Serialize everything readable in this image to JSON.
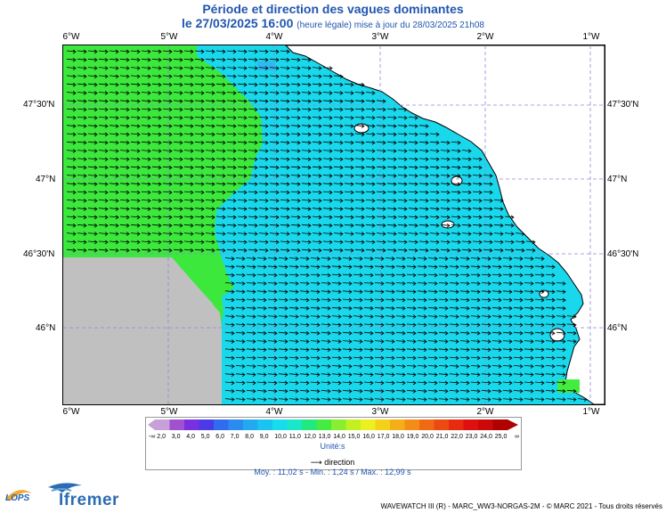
{
  "title": {
    "line1": "Période et direction des vagues dominantes",
    "date": "le 27/03/2025 16:00",
    "update": "(heure légale) mise à jour du 28/03/2025 21h08"
  },
  "axes": {
    "lon_labels": [
      "6°W",
      "5°W",
      "4°W",
      "3°W",
      "2°W",
      "1°W"
    ],
    "lat_labels": [
      "47°30'N",
      "47°N",
      "46°30'N",
      "46°N"
    ]
  },
  "legend": {
    "ticks": [
      "-∞",
      "2,0",
      "3,0",
      "4,0",
      "5,0",
      "6,0",
      "7,0",
      "8,0",
      "9,0",
      "10,0",
      "11,0",
      "12,0",
      "13,0",
      "14,0",
      "15,0",
      "16,0",
      "17,0",
      "18,0",
      "19,0",
      "20,0",
      "21,0",
      "22,0",
      "23,0",
      "24,0",
      "25,0",
      "∞"
    ],
    "colors": [
      "#c8a0d8",
      "#a050d0",
      "#7a30e0",
      "#4a3ae8",
      "#2f6cf0",
      "#2a8cf0",
      "#22aaf0",
      "#19c4f2",
      "#17dcec",
      "#18e8c8",
      "#22e880",
      "#44ec40",
      "#88ee30",
      "#c2f020",
      "#ecf020",
      "#f4d018",
      "#f4ae18",
      "#f48c18",
      "#f06a14",
      "#ec4a10",
      "#e82a10",
      "#e01010",
      "#cc0808",
      "#b00000"
    ],
    "unit": "Unité:s",
    "direction_label": "direction",
    "stats": "Moy. : 11,02 s   -   Min. : 1,24 s / Max. : 12,99 s"
  },
  "footer": "WAVEWATCH III (R) - MARC_WW3-NORGAS-2M - © MARC 2021 - Tous droits réservés",
  "logos": {
    "lops": "LOPS",
    "ifremer": "Ifremer"
  },
  "colors": {
    "green_zone": "#3ce83c",
    "cyan_zone": "#19d8ec",
    "no_data": "#c0c0c0",
    "title": "#2156b0"
  }
}
